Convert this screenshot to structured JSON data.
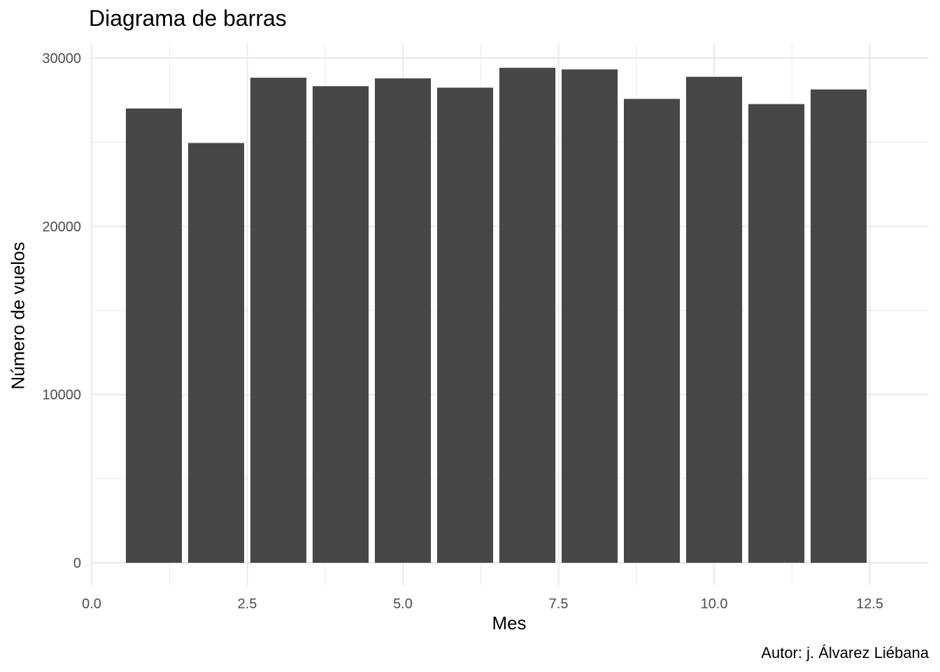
{
  "chart_data": {
    "type": "bar",
    "title": "Diagrama de barras",
    "caption": "Autor: j. Álvarez Liébana",
    "xlabel": "Mes",
    "ylabel": "Número de vuelos",
    "x": [
      1,
      2,
      3,
      4,
      5,
      6,
      7,
      8,
      9,
      10,
      11,
      12
    ],
    "values": [
      27004,
      24951,
      28834,
      28330,
      28796,
      28243,
      29425,
      29327,
      27574,
      28889,
      27268,
      28135
    ],
    "xlim": [
      0,
      12.9
    ],
    "ylim": [
      0,
      31000
    ],
    "x_ticks": [
      "0.0",
      "2.5",
      "5.0",
      "7.5",
      "10.0",
      "12.5"
    ],
    "y_ticks": [
      "0",
      "10000",
      "20000",
      "30000"
    ],
    "bar_color": "#474747",
    "grid": true,
    "grid_color": "#ebebeb",
    "background": "#ffffff"
  }
}
